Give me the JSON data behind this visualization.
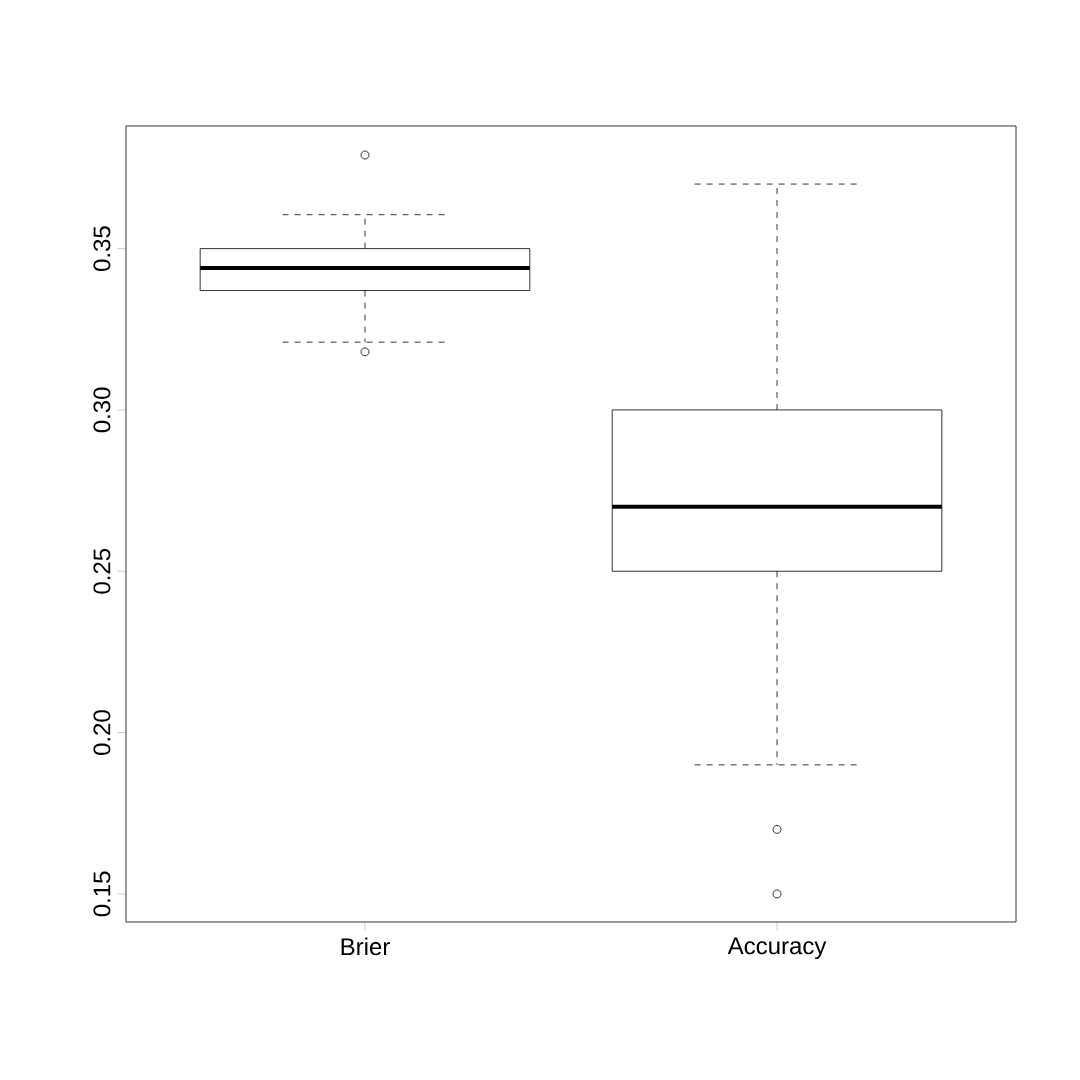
{
  "chart_data": {
    "type": "box",
    "categories": [
      "Brier",
      "Accuracy"
    ],
    "boxes": [
      {
        "low": 0.321,
        "q1": 0.337,
        "median": 0.344,
        "q3": 0.35,
        "high": 0.3605,
        "outliers": [
          0.379,
          0.318
        ]
      },
      {
        "low": 0.19,
        "q1": 0.25,
        "median": 0.27,
        "q3": 0.3,
        "high": 0.37,
        "outliers": [
          0.17,
          0.15
        ]
      }
    ],
    "ylim": [
      0.1413,
      0.388
    ],
    "yticks": [
      0.15,
      {
        "value": 0.2,
        "label": "0.20"
      },
      0.25,
      {
        "value": 0.3,
        "label": "0.30"
      },
      0.35
    ]
  }
}
